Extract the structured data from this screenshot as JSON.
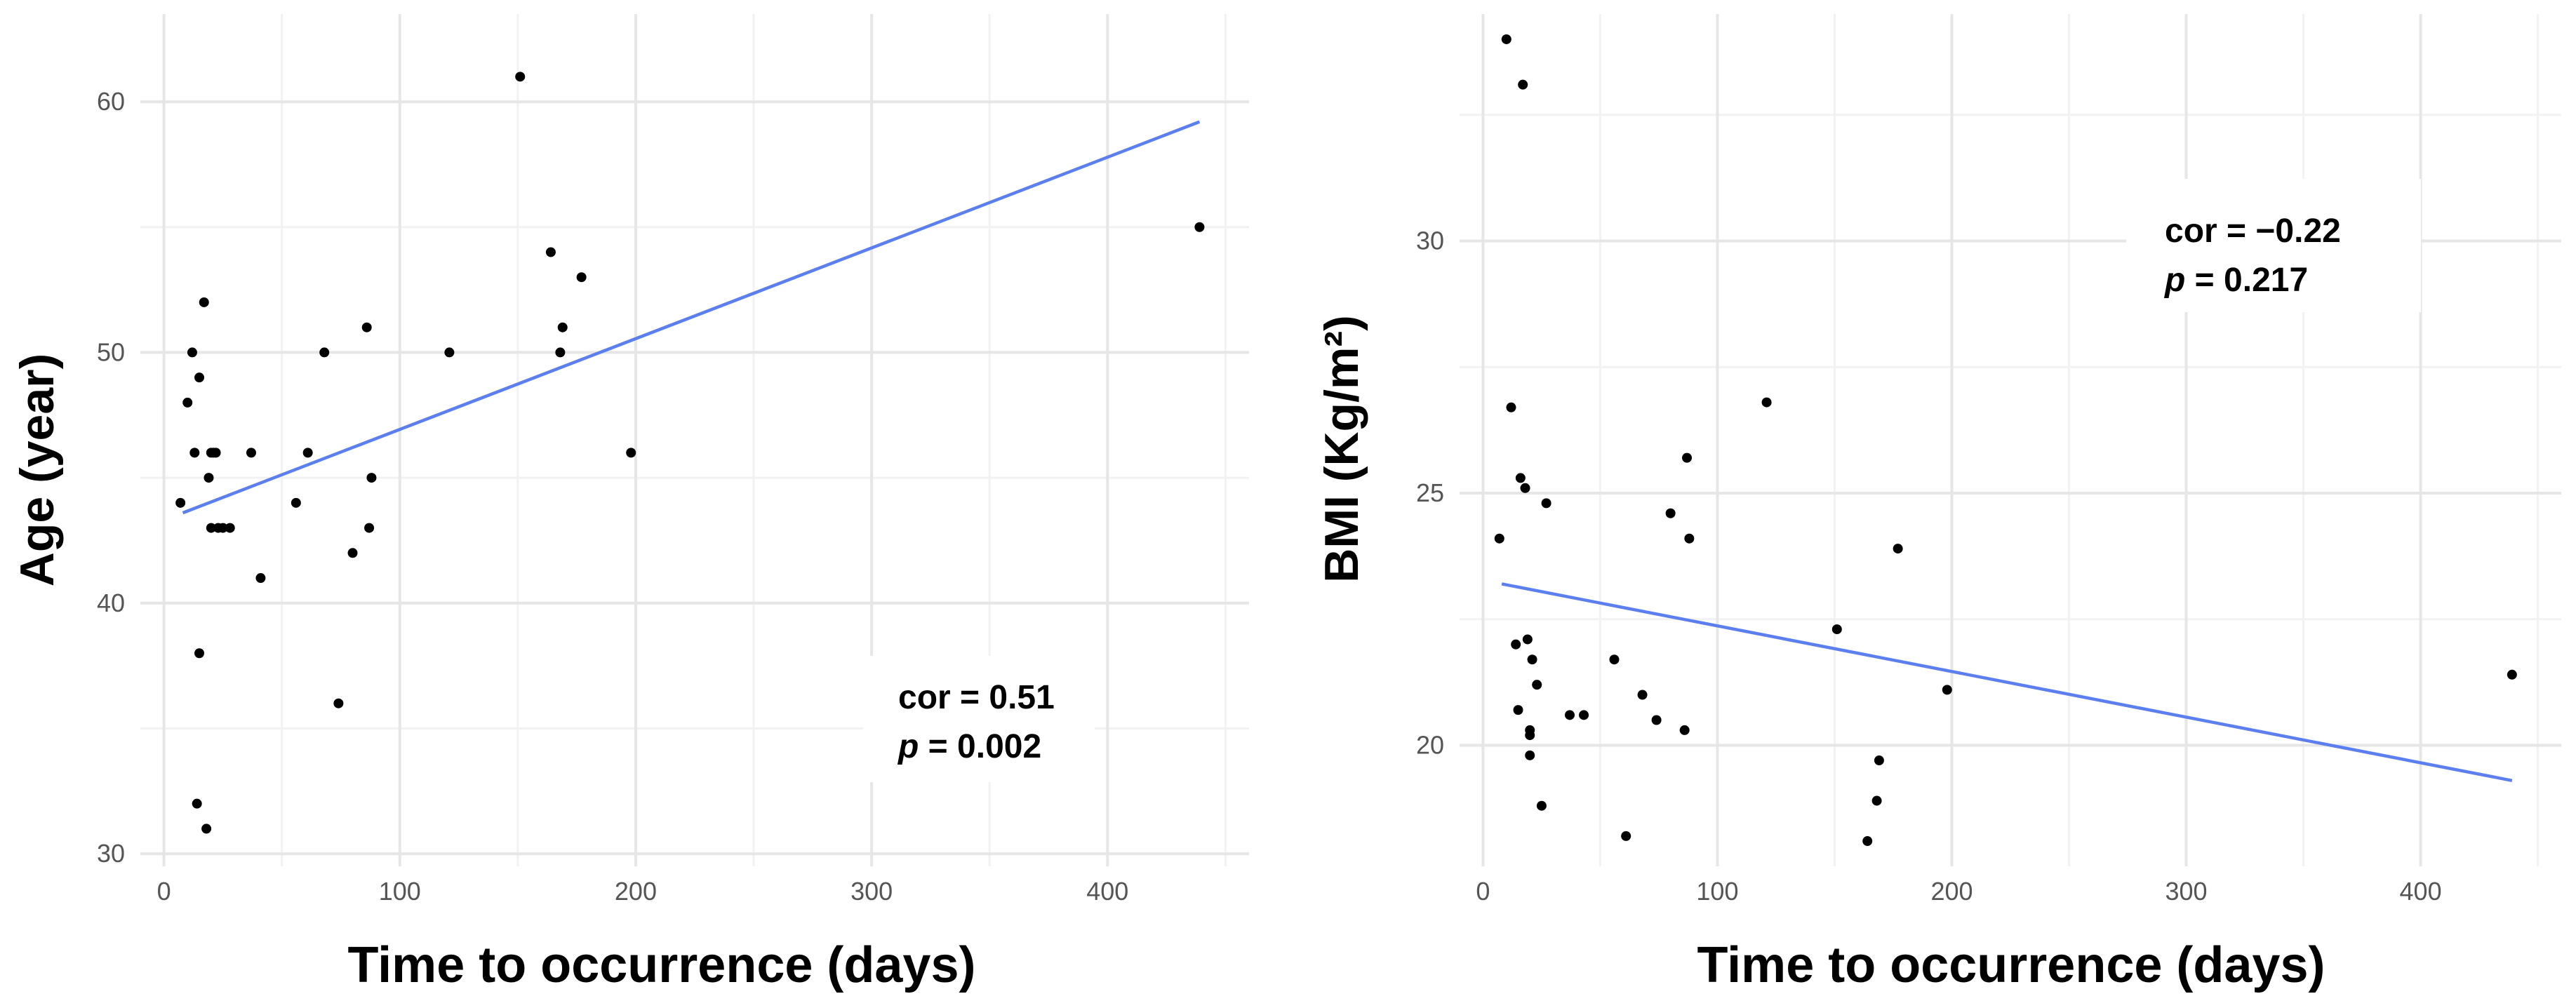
{
  "chart_data": [
    {
      "type": "scatter",
      "title": "",
      "xlabel": "Time to occurrence (days)",
      "ylabel": "Age (year)",
      "xlim": [
        -10,
        460
      ],
      "ylim": [
        29.5,
        63.5
      ],
      "xticks": [
        0,
        100,
        200,
        300,
        400
      ],
      "yticks": [
        30,
        40,
        50,
        60
      ],
      "grid": true,
      "x": [
        7,
        10,
        12,
        13,
        14,
        15,
        15,
        17,
        18,
        19,
        20,
        20,
        21,
        22,
        23,
        25,
        28,
        37,
        41,
        56,
        61,
        68,
        74,
        80,
        86,
        87,
        88,
        121,
        151,
        164,
        168,
        169,
        177,
        198,
        439
      ],
      "y": [
        44,
        48,
        50,
        46,
        32,
        38,
        49,
        52,
        31,
        45,
        46,
        43,
        46,
        46,
        43,
        43,
        43,
        46,
        41,
        44,
        46,
        50,
        36,
        42,
        51,
        43,
        45,
        50,
        61,
        54,
        50,
        51,
        53,
        46,
        55
      ],
      "fit_line": {
        "x": [
          8,
          439
        ],
        "y": [
          43.6,
          59.2
        ],
        "color": "#5b7ff0"
      },
      "annotation": {
        "cor_label": "cor = 0.51",
        "p_symbol": "p",
        "p_rest": " = 0.002"
      }
    },
    {
      "type": "scatter",
      "title": "",
      "xlabel": "Time to occurrence (days)",
      "ylabel": "BMI (Kg/m²)",
      "xlim": [
        -10,
        460
      ],
      "ylim": [
        17.6,
        34.5
      ],
      "xticks": [
        0,
        100,
        200,
        300,
        400
      ],
      "yticks": [
        20,
        25,
        30
      ],
      "grid": true,
      "x": [
        7,
        10,
        12,
        14,
        15,
        16,
        17,
        18,
        19,
        20,
        20,
        20,
        21,
        23,
        25,
        27,
        37,
        43,
        56,
        61,
        68,
        74,
        80,
        86,
        87,
        88,
        121,
        151,
        164,
        168,
        169,
        177,
        198,
        439
      ],
      "y": [
        24.1,
        34.0,
        26.7,
        22.0,
        20.7,
        25.3,
        33.1,
        25.1,
        22.1,
        20.3,
        20.2,
        19.8,
        21.7,
        21.2,
        18.8,
        24.8,
        20.6,
        20.6,
        21.7,
        18.2,
        21.0,
        20.5,
        24.6,
        20.3,
        25.7,
        24.1,
        26.8,
        22.3,
        18.1,
        18.9,
        19.7,
        23.9,
        21.1,
        21.4
      ],
      "fit_line": {
        "x": [
          8,
          439
        ],
        "y": [
          23.2,
          19.3
        ],
        "color": "#5b7ff0"
      },
      "annotation": {
        "cor_label": "cor = −0.22",
        "p_symbol": "p",
        "p_rest": " = 0.217"
      }
    }
  ]
}
